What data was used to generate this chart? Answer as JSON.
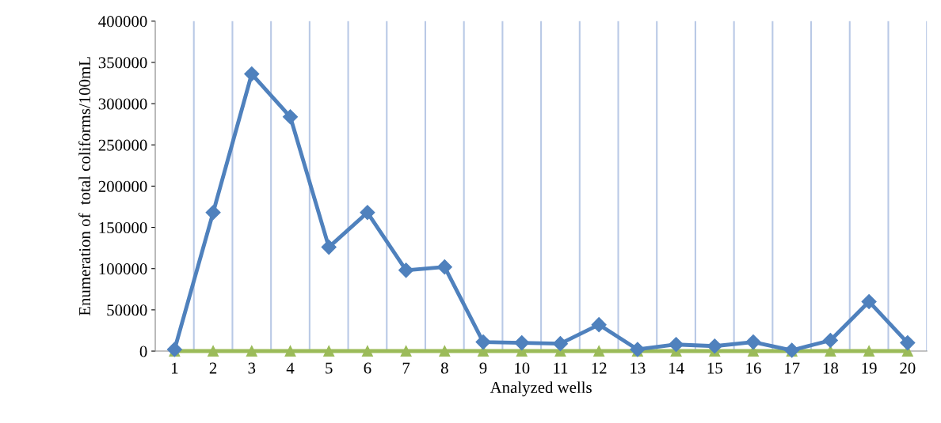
{
  "chart_data": {
    "type": "line",
    "xlabel": "Analyzed wells",
    "ylabel": "Enumeration of  total coliforms/100mL",
    "categories": [
      "1",
      "2",
      "3",
      "4",
      "5",
      "6",
      "7",
      "8",
      "9",
      "10",
      "11",
      "12",
      "13",
      "14",
      "15",
      "16",
      "17",
      "18",
      "19",
      "20"
    ],
    "series": [
      {
        "color": "#4f81bd",
        "marker": "diamond",
        "values": [
          2000,
          168000,
          336000,
          284000,
          126000,
          168000,
          98000,
          102000,
          11000,
          10000,
          9000,
          32000,
          2000,
          8000,
          6000,
          11000,
          1000,
          13000,
          60000,
          10000
        ]
      },
      {
        "color": "#9bbb59",
        "marker": "triangle",
        "values": [
          0,
          0,
          0,
          0,
          0,
          0,
          0,
          0,
          0,
          0,
          0,
          0,
          0,
          0,
          0,
          0,
          0,
          0,
          0,
          0
        ]
      }
    ],
    "ylim": [
      0,
      400000
    ],
    "yticks": [
      0,
      50000,
      100000,
      150000,
      200000,
      250000,
      300000,
      350000,
      400000
    ],
    "grid": "x",
    "legend": false,
    "line_style": "solid"
  }
}
